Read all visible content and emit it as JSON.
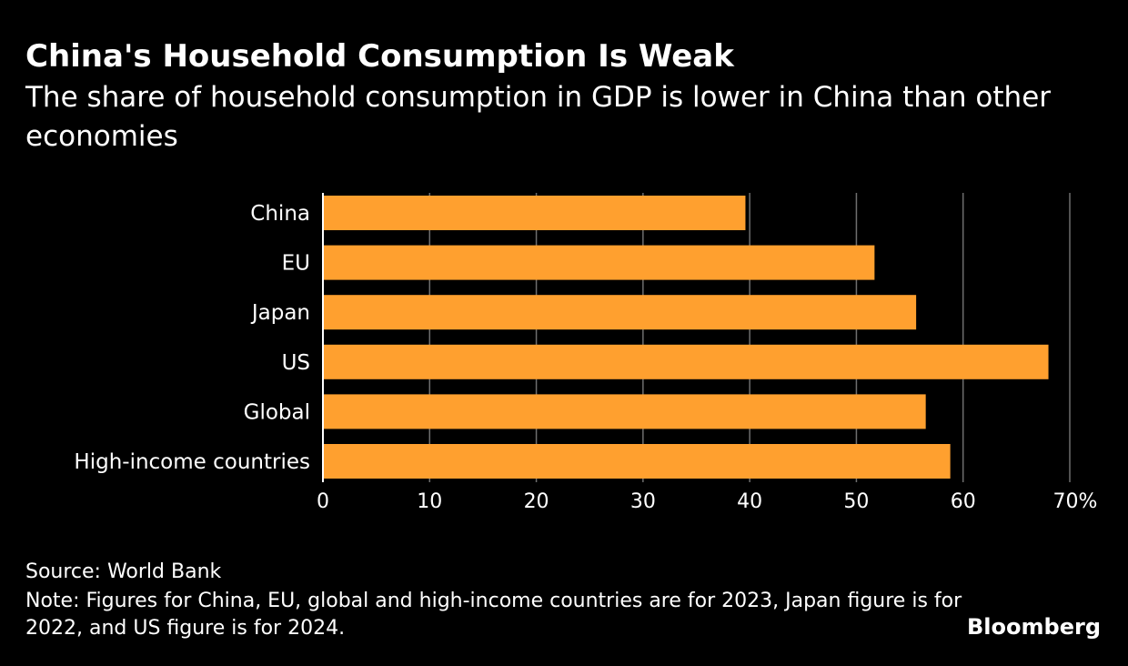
{
  "header": {
    "title": "China's Household Consumption Is Weak",
    "subtitle": "The share of household consumption in GDP is lower in China than other economies"
  },
  "chart_data": {
    "type": "bar",
    "orientation": "horizontal",
    "title": "China's Household Consumption Is Weak",
    "subtitle": "The share of household consumption in GDP is lower in China than other economies",
    "categories": [
      "China",
      "EU",
      "Japan",
      "US",
      "Global",
      "High-income countries"
    ],
    "values": [
      39.6,
      51.7,
      55.6,
      68.0,
      56.5,
      58.8
    ],
    "xlabel": "",
    "ylabel": "",
    "xlim": [
      0,
      70
    ],
    "xticks": [
      0,
      10,
      20,
      30,
      40,
      50,
      60,
      70
    ],
    "xtick_labels": [
      "0",
      "10",
      "20",
      "30",
      "40",
      "50",
      "60",
      "70%"
    ],
    "grid": true,
    "bar_color": "#ffa02f",
    "gridline_color": "#6e6e6e",
    "background_color": "#000000"
  },
  "footer": {
    "source": "Source: World Bank",
    "note": "Note: Figures for China, EU, global and high-income countries are for 2023, Japan figure is for 2022, and US figure is for 2024.",
    "brand": "Bloomberg"
  }
}
